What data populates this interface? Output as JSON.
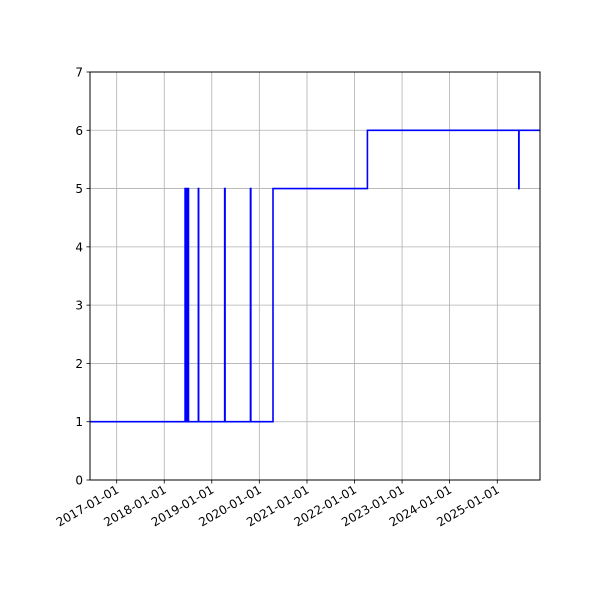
{
  "chart_data": {
    "type": "line",
    "title": "",
    "xlabel": "",
    "ylabel": "",
    "x_axis_type": "date",
    "xlim": [
      "2016-06-10",
      "2025-11-25"
    ],
    "ylim": [
      0,
      7
    ],
    "grid": true,
    "line_style": "steps",
    "y_ticks": [
      0,
      1,
      2,
      3,
      4,
      5,
      6,
      7
    ],
    "x_ticks": [
      "2017-01-01",
      "2018-01-01",
      "2019-01-01",
      "2020-01-01",
      "2021-01-01",
      "2022-01-01",
      "2023-01-01",
      "2024-01-01",
      "2025-01-01"
    ],
    "series": [
      {
        "color": "#0000ff",
        "points": [
          {
            "x": "2016-06-10",
            "y": 1
          },
          {
            "x": "2018-06-10",
            "y": 1
          },
          {
            "x": "2018-06-10",
            "y": 5
          },
          {
            "x": "2018-06-14",
            "y": 5
          },
          {
            "x": "2018-06-14",
            "y": 1
          },
          {
            "x": "2018-06-20",
            "y": 1
          },
          {
            "x": "2018-06-20",
            "y": 5
          },
          {
            "x": "2018-06-25",
            "y": 5
          },
          {
            "x": "2018-06-25",
            "y": 1
          },
          {
            "x": "2018-07-01",
            "y": 1
          },
          {
            "x": "2018-07-01",
            "y": 5
          },
          {
            "x": "2018-07-06",
            "y": 5
          },
          {
            "x": "2018-07-06",
            "y": 1
          },
          {
            "x": "2018-09-20",
            "y": 1
          },
          {
            "x": "2018-09-20",
            "y": 5
          },
          {
            "x": "2018-09-22",
            "y": 5
          },
          {
            "x": "2018-09-22",
            "y": 1
          },
          {
            "x": "2019-04-10",
            "y": 1
          },
          {
            "x": "2019-04-10",
            "y": 5
          },
          {
            "x": "2019-04-13",
            "y": 5
          },
          {
            "x": "2019-04-13",
            "y": 1
          },
          {
            "x": "2019-10-25",
            "y": 1
          },
          {
            "x": "2019-10-25",
            "y": 5
          },
          {
            "x": "2019-10-28",
            "y": 5
          },
          {
            "x": "2019-10-28",
            "y": 1
          },
          {
            "x": "2020-04-15",
            "y": 1
          },
          {
            "x": "2020-04-15",
            "y": 5
          },
          {
            "x": "2022-04-10",
            "y": 5
          },
          {
            "x": "2022-04-10",
            "y": 6
          },
          {
            "x": "2025-06-15",
            "y": 6
          },
          {
            "x": "2025-06-15",
            "y": 5
          },
          {
            "x": "2025-06-17",
            "y": 5
          },
          {
            "x": "2025-06-17",
            "y": 6
          },
          {
            "x": "2025-11-25",
            "y": 6
          }
        ]
      }
    ]
  }
}
